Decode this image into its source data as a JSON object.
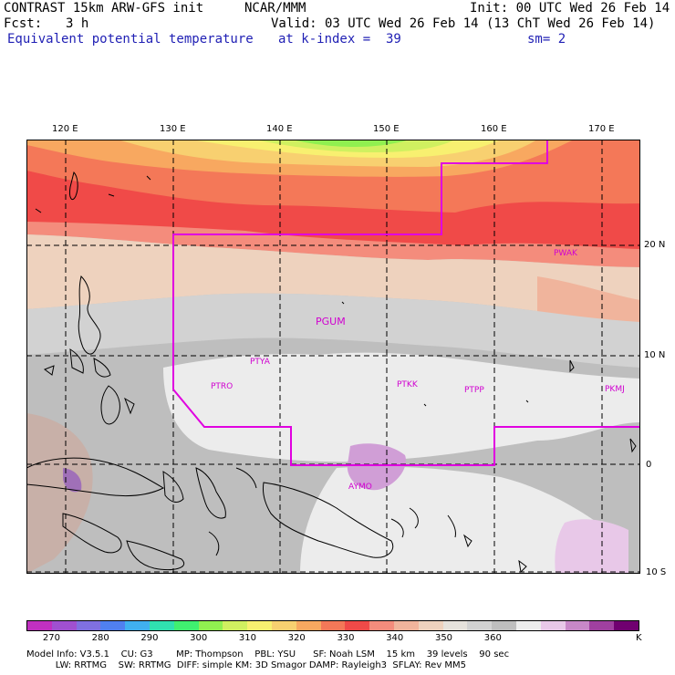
{
  "header": {
    "model": "CONTRAST 15km ARW-GFS init",
    "org": "NCAR/MMM",
    "init": "Init: 00 UTC Wed 26 Feb 14",
    "fcst_label": "Fcst:",
    "fcst_value": "3 h",
    "valid": "Valid: 03 UTC Wed 26 Feb 14 (13 ChT Wed 26 Feb 14)",
    "field": "Equivalent potential temperature",
    "level": "at k-index =  39",
    "smooth": "sm= 2"
  },
  "axes": {
    "lon_labels": [
      "120 E",
      "130 E",
      "140 E",
      "150 E",
      "160 E",
      "170 E"
    ],
    "lat_labels": [
      "20 N",
      "10 N",
      "0",
      "10 S"
    ]
  },
  "stations": [
    "PWAK",
    "PGUM",
    "PTYA",
    "PTRO",
    "PTKK",
    "PTPP",
    "PKMJ",
    "AYMO"
  ],
  "colorbar": {
    "colors": [
      "#c030c0",
      "#a050d0",
      "#8070e0",
      "#5080f0",
      "#40b0f0",
      "#30e0b0",
      "#40f070",
      "#90f050",
      "#d0f060",
      "#f8f070",
      "#f8d070",
      "#f8a860",
      "#f47858",
      "#f04a48",
      "#f48c7c",
      "#f0b49c",
      "#eed2be",
      "#e6e2dc",
      "#d2d2d2",
      "#bebebe",
      "#ececec",
      "#e8c8e8",
      "#c888c8",
      "#a040a0",
      "#700070"
    ],
    "labels": [
      "270",
      "280",
      "290",
      "300",
      "310",
      "320",
      "330",
      "340",
      "350",
      "360"
    ],
    "unit": "K"
  },
  "footer": {
    "line1": "Model Info: V3.5.1    CU: G3        MP: Thompson    PBL: YSU      SF: Noah LSM    15 km    39 levels    90 sec",
    "line2": "          LW: RRTMG    SW: RRTMG  DIFF: simple KM: 3D Smagor DAMP: Rayleigh3  SFLAY: Rev MM5"
  },
  "colors": {
    "boundary": "#e000e0",
    "header_blue": "#1f1fb4"
  }
}
